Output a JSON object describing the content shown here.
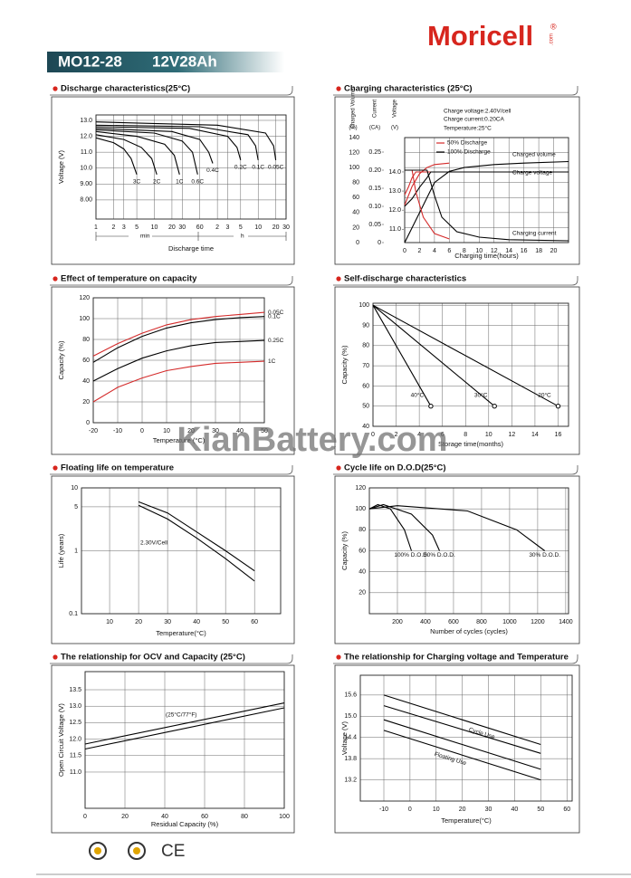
{
  "header": {
    "brand": "Moricell",
    "registered": "®",
    "domain": ".com",
    "model": "MO12-28",
    "spec": "12V28Ah"
  },
  "watermark": "KianBattery.com",
  "footer": {
    "cert": "CE"
  },
  "chart_data": [
    {
      "type": "line",
      "title": "Discharge characteristics(25°C)",
      "ylabel": "Voltage (V)",
      "xlabel": "Discharge time",
      "xlog": true,
      "grid": true,
      "xlim": [
        1,
        1800
      ],
      "ylim": [
        6.8,
        13.34
      ],
      "xticks": [
        1,
        2,
        3,
        5,
        10,
        20,
        30,
        60,
        {
          "value": 120,
          "label": "2"
        },
        {
          "value": 180,
          "label": "3"
        },
        {
          "value": 300,
          "label": "5"
        },
        {
          "value": 600,
          "label": "10"
        },
        {
          "value": 1200,
          "label": "20"
        },
        {
          "value": 1800,
          "label": "30"
        }
      ],
      "yticks": [
        {
          "value": 8,
          "label": "8.00"
        },
        {
          "value": 9,
          "label": "9.00"
        },
        {
          "value": 10,
          "label": "10.0"
        },
        {
          "value": 11,
          "label": "11.0"
        },
        {
          "value": 12,
          "label": "12.0"
        },
        {
          "value": 13,
          "label": "13.0"
        }
      ],
      "notes": [
        "min",
        "h"
      ],
      "series": [
        {
          "name": "3C",
          "color": "#000000",
          "x": [
            1,
            2,
            3,
            4,
            5
          ],
          "values": [
            11.9,
            11.6,
            11.2,
            10.6,
            9.6
          ]
        },
        {
          "name": "2C",
          "color": "#000000",
          "x": [
            1,
            3,
            6,
            9,
            11
          ],
          "values": [
            12.1,
            11.8,
            11.3,
            10.6,
            9.6
          ]
        },
        {
          "name": "1C",
          "color": "#000000",
          "x": [
            1,
            5,
            15,
            22,
            27
          ],
          "values": [
            12.3,
            12.0,
            11.5,
            10.8,
            9.6
          ]
        },
        {
          "name": "0.6C",
          "color": "#000000",
          "x": [
            1,
            10,
            30,
            45,
            55
          ],
          "values": [
            12.4,
            12.2,
            11.7,
            11.0,
            9.6
          ]
        },
        {
          "name": "0.4C",
          "color": "#000000",
          "x": [
            1,
            20,
            60,
            85,
            100
          ],
          "values": [
            12.5,
            12.3,
            11.8,
            11.0,
            10.3
          ]
        },
        {
          "name": "0.2C",
          "color": "#000000",
          "x": [
            1,
            40,
            180,
            260,
            300
          ],
          "values": [
            12.6,
            12.5,
            12.0,
            11.3,
            10.5
          ]
        },
        {
          "name": "0.1C",
          "color": "#000000",
          "x": [
            1,
            60,
            400,
            540,
            600
          ],
          "values": [
            12.7,
            12.6,
            12.1,
            11.4,
            10.5
          ]
        },
        {
          "name": "0.05C",
          "color": "#000000",
          "x": [
            1,
            120,
            800,
            1100,
            1200
          ],
          "values": [
            12.9,
            12.7,
            12.2,
            11.4,
            10.5
          ]
        }
      ]
    },
    {
      "type": "line",
      "title": "Charging characteristics (25°C)",
      "xlabel": "Charging time(hours)",
      "ylabel": "Charged Volume",
      "yunit": "(%)",
      "y2label": "Current",
      "y2unit": "(CA)",
      "y3label": "Voltage",
      "y3unit": "(V)",
      "grid": true,
      "legend": true,
      "xlim": [
        0,
        22
      ],
      "ylim": [
        0,
        140
      ],
      "y2lim": [
        0,
        0.29
      ],
      "y3lim": [
        10.3,
        15.8
      ],
      "xticks": [
        0,
        2,
        4,
        6,
        8,
        10,
        12,
        14,
        16,
        18,
        20
      ],
      "yticks": [
        0,
        20,
        40,
        60,
        80,
        100,
        120,
        140
      ],
      "y2ticks": [
        0,
        0.05,
        {
          "value": 0.1,
          "label": "0.10"
        },
        0.15,
        {
          "value": 0.2,
          "label": "0.20"
        },
        0.25
      ],
      "y3ticks": [
        {
          "value": 11,
          "label": "11.0"
        },
        {
          "value": 12,
          "label": "12.0"
        },
        {
          "value": 13,
          "label": "13.0"
        },
        {
          "value": 14,
          "label": "14.0"
        }
      ],
      "notes": [
        "Charge voltage:2.40V/cell",
        "Charge current:0.20CA",
        "Temperature:25°C",
        "Charged volume",
        "Charge voltage",
        "Charging current"
      ],
      "series": [
        {
          "name": "50% Discharge",
          "color": "#d42a2a",
          "x": [
            0,
            1,
            2,
            3,
            4,
            6
          ],
          "values": [
            50,
            75,
            92,
            100,
            104,
            106
          ]
        },
        {
          "name": "100% Discharge",
          "color": "#000000",
          "x": [
            0,
            2,
            4,
            6,
            8,
            12,
            16,
            22
          ],
          "values": [
            0,
            40,
            80,
            95,
            100,
            104,
            106,
            108
          ]
        },
        {
          "color": "#d42a2a",
          "axis": "y3",
          "x": [
            0,
            0.5,
            1,
            1.5,
            22
          ],
          "values": [
            12.8,
            13.2,
            13.7,
            14.0,
            14.0
          ]
        },
        {
          "color": "#000000",
          "axis": "y3",
          "x": [
            0,
            1,
            2,
            3,
            3.5,
            22
          ],
          "values": [
            12.2,
            12.6,
            13.2,
            13.7,
            14.0,
            14.0
          ]
        },
        {
          "color": "#d42a2a",
          "axis": "y2",
          "x": [
            0,
            1,
            1.5,
            2.5,
            4,
            6
          ],
          "values": [
            0.2,
            0.2,
            0.14,
            0.07,
            0.025,
            0.01
          ]
        },
        {
          "color": "#000000",
          "axis": "y2",
          "x": [
            0,
            3,
            4,
            5,
            7,
            10,
            14,
            22
          ],
          "values": [
            0.2,
            0.2,
            0.13,
            0.07,
            0.03,
            0.015,
            0.008,
            0.005
          ]
        }
      ]
    },
    {
      "type": "line",
      "title": "Effect of temperature on capacity",
      "ylabel": "Capacity (%)",
      "xlabel": "Temperature (°C)",
      "grid": true,
      "xlim": [
        -20,
        50
      ],
      "ylim": [
        0,
        120
      ],
      "xticks": [
        -20,
        -10,
        0,
        10,
        20,
        30,
        40,
        50
      ],
      "yticks": [
        0,
        20,
        40,
        60,
        80,
        100,
        120
      ],
      "series": [
        {
          "name": "0.05C",
          "color": "#d42a2a",
          "x": [
            -20,
            -10,
            0,
            10,
            20,
            30,
            40,
            50
          ],
          "values": [
            64,
            76,
            86,
            94,
            99,
            102,
            104,
            106
          ]
        },
        {
          "name": "0.1C",
          "color": "#000000",
          "x": [
            -20,
            -10,
            0,
            10,
            20,
            30,
            40,
            50
          ],
          "values": [
            58,
            72,
            83,
            91,
            96,
            99,
            101,
            102
          ]
        },
        {
          "name": "0.25C",
          "color": "#000000",
          "x": [
            -20,
            -10,
            0,
            10,
            20,
            30,
            40,
            50
          ],
          "values": [
            40,
            52,
            62,
            69,
            74,
            77,
            78,
            79
          ]
        },
        {
          "name": "1C",
          "color": "#d42a2a",
          "x": [
            -20,
            -10,
            0,
            10,
            20,
            30,
            40,
            50
          ],
          "values": [
            20,
            34,
            43,
            50,
            54,
            57,
            58,
            59
          ]
        }
      ]
    },
    {
      "type": "line",
      "title": "Self-discharge characteristics",
      "ylabel": "Capacity (%)",
      "xlabel": "Storage time(months)",
      "grid": true,
      "end_markers": true,
      "xlim": [
        0,
        16.9
      ],
      "ylim": [
        40,
        101
      ],
      "xticks": [
        0,
        2,
        4,
        6,
        8,
        10,
        12,
        14,
        16
      ],
      "yticks": [
        40,
        50,
        60,
        70,
        80,
        90,
        100
      ],
      "series": [
        {
          "name": "40°C",
          "color": "#000000",
          "x": [
            0,
            5
          ],
          "values": [
            100,
            50
          ]
        },
        {
          "name": "30°C",
          "color": "#000000",
          "x": [
            0,
            10.5
          ],
          "values": [
            100,
            50
          ]
        },
        {
          "name": "20°C",
          "color": "#000000",
          "x": [
            0,
            16
          ],
          "values": [
            100,
            50
          ]
        }
      ]
    },
    {
      "type": "line",
      "title": "Floating life on temperature",
      "ylabel": "Life (years)",
      "xlabel": "Temperature(°C)",
      "grid": true,
      "ylog": true,
      "xlim": [
        0.3,
        69
      ],
      "ylim": [
        0.1,
        10
      ],
      "xticks": [
        10,
        20,
        30,
        40,
        50,
        60
      ],
      "yticks": [
        0.1,
        1,
        5,
        10
      ],
      "notes": [
        "2.30V/Cell"
      ],
      "series": [
        {
          "color": "#000000",
          "x": [
            20,
            30,
            40,
            50,
            60
          ],
          "values": [
            6.0,
            4.0,
            2.0,
            1.0,
            0.48
          ]
        },
        {
          "color": "#000000",
          "x": [
            20,
            30,
            40,
            50,
            60
          ],
          "values": [
            5.3,
            3.2,
            1.6,
            0.75,
            0.33
          ]
        }
      ]
    },
    {
      "type": "line",
      "title": "Cycle life on D.O.D(25°C)",
      "ylabel": "Capacity (%)",
      "xlabel": "Number of cycles (cycles)",
      "grid": true,
      "xlim": [
        0,
        1420
      ],
      "ylim": [
        0,
        120
      ],
      "xticks": [
        200,
        400,
        600,
        800,
        1000,
        1200,
        1400
      ],
      "yticks": [
        20,
        40,
        60,
        80,
        100,
        120
      ],
      "series": [
        {
          "name": "100% D.O.D.",
          "color": "#000000",
          "x": [
            0,
            60,
            150,
            250,
            300
          ],
          "values": [
            100,
            104,
            100,
            80,
            60
          ]
        },
        {
          "name": "50% D.O.D.",
          "color": "#000000",
          "x": [
            0,
            100,
            300,
            450,
            500
          ],
          "values": [
            100,
            104,
            95,
            75,
            60
          ]
        },
        {
          "name": "30% D.O.D.",
          "color": "#000000",
          "x": [
            0,
            200,
            700,
            1050,
            1250
          ],
          "values": [
            100,
            103,
            98,
            80,
            60
          ]
        }
      ]
    },
    {
      "type": "line",
      "title": "The relationship  for OCV and Capacity (25°C)",
      "ylabel": "Open Circuit Voltage (V)",
      "xlabel": "Residual Capacity (%)",
      "grid": true,
      "xlim": [
        0,
        100
      ],
      "ylim": [
        9.9,
        14.05
      ],
      "xticks": [
        0,
        20,
        40,
        60,
        80,
        100
      ],
      "yticks": [
        {
          "value": 11,
          "label": "11.0"
        },
        11.5,
        {
          "value": 12,
          "label": "12.0"
        },
        12.5,
        {
          "value": 13,
          "label": "13.0"
        },
        13.5
      ],
      "notes": [
        "(25°C/77°F)"
      ],
      "series": [
        {
          "color": "#000000",
          "x": [
            0,
            100
          ],
          "values": [
            11.85,
            13.1
          ]
        },
        {
          "color": "#000000",
          "x": [
            0,
            100
          ],
          "values": [
            11.7,
            12.95
          ]
        }
      ]
    },
    {
      "type": "line",
      "title": "The relationship for Charging voltage and Temperature",
      "ylabel": "Voltage (V)",
      "xlabel": "Temperature(°C)",
      "grid": true,
      "xlim": [
        -19,
        62
      ],
      "ylim": [
        12.6,
        16.16
      ],
      "xticks": [
        -10,
        0,
        10,
        20,
        30,
        40,
        50,
        60
      ],
      "yticks": [
        13.2,
        13.8,
        14.4,
        {
          "value": 15,
          "label": "15.0"
        },
        15.6
      ],
      "notes": [
        "Cycle Use",
        "Floating Use"
      ],
      "series": [
        {
          "color": "#000000",
          "x": [
            -10,
            50
          ],
          "values": [
            15.6,
            14.2
          ]
        },
        {
          "color": "#000000",
          "x": [
            -10,
            50
          ],
          "values": [
            15.3,
            13.95
          ]
        },
        {
          "color": "#000000",
          "x": [
            -10,
            50
          ],
          "values": [
            14.9,
            13.5
          ]
        },
        {
          "color": "#000000",
          "x": [
            -10,
            50
          ],
          "values": [
            14.6,
            13.2
          ]
        }
      ]
    }
  ]
}
